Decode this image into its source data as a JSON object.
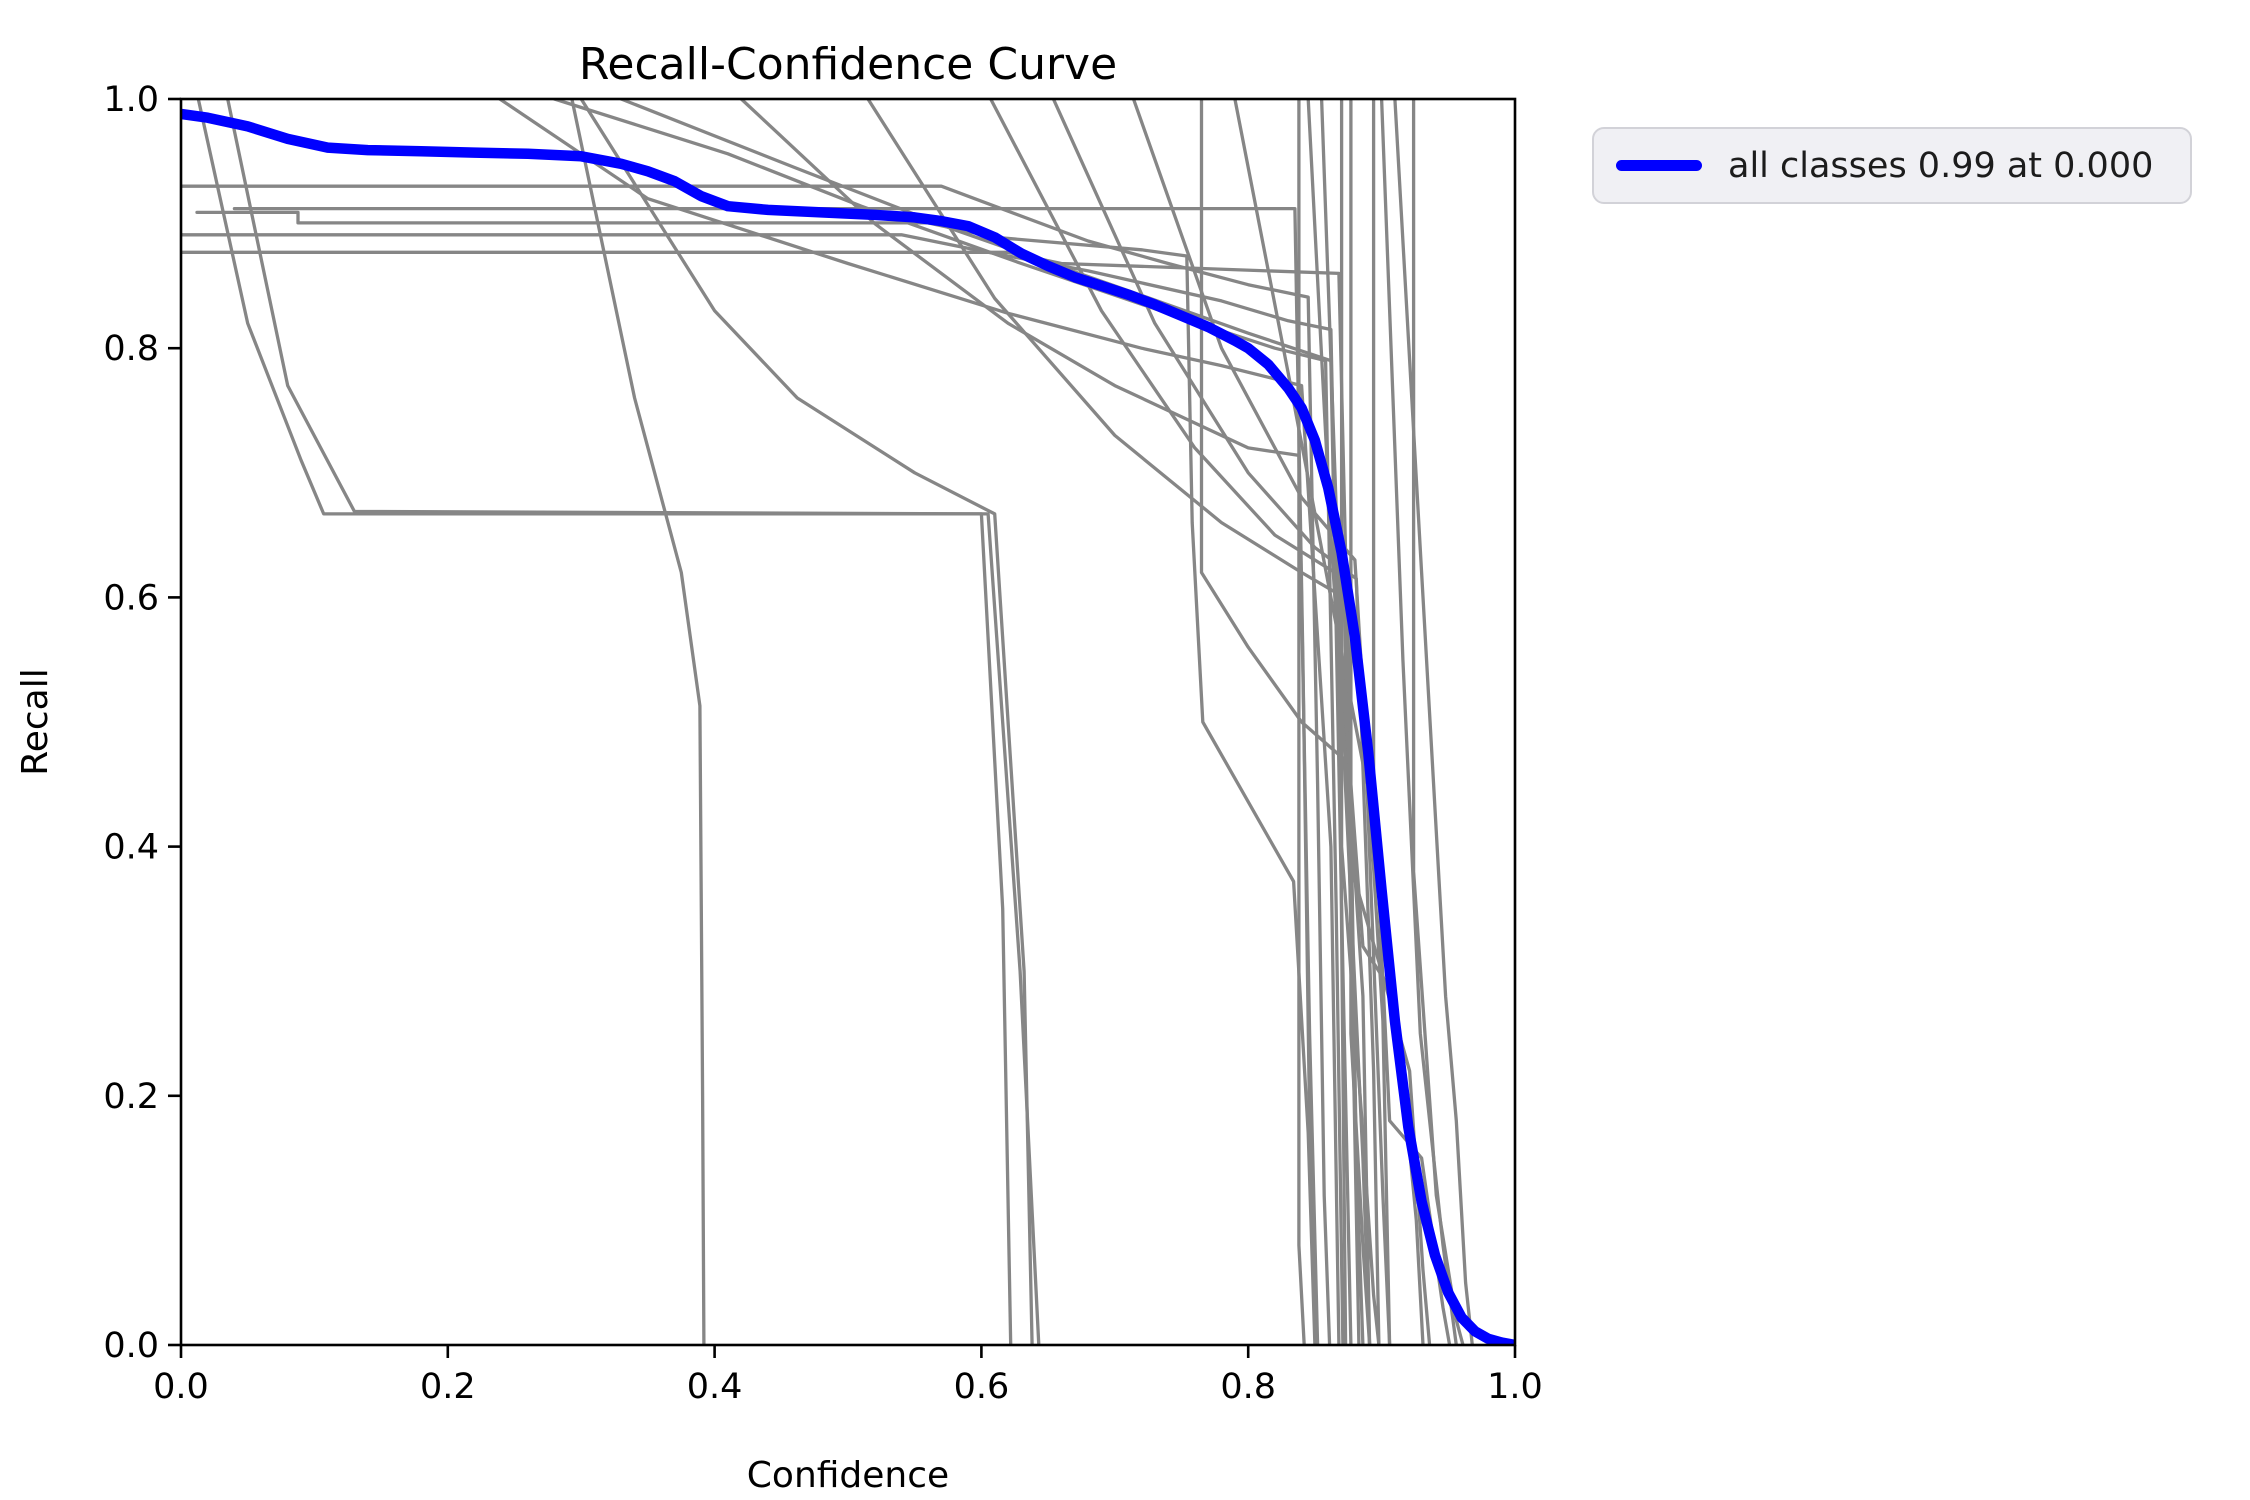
{
  "figure": {
    "title": "Recall-Confidence Curve",
    "xlabel": "Confidence",
    "ylabel": "Recall"
  },
  "legend": {
    "entries": [
      {
        "label": "all classes 0.99 at 0.000",
        "color": "#0000ff"
      }
    ]
  },
  "colors": {
    "all_classes_line": "#0000ff",
    "class_lines": "#868686",
    "axes": "#000000",
    "legend_background": "#f0f0f4",
    "legend_border": "#d2d2d8",
    "background": "#ffffff"
  },
  "chart_data": {
    "type": "line",
    "title": "Recall-Confidence Curve",
    "xlabel": "Confidence",
    "ylabel": "Recall",
    "xlim": [
      0.0,
      1.0
    ],
    "ylim": [
      0.0,
      1.0
    ],
    "grid": false,
    "legend_position": "outside-upper-right",
    "xtick_values": [
      0.0,
      0.2,
      0.4,
      0.6,
      0.8,
      1.0
    ],
    "xtick_labels": [
      "0.0",
      "0.2",
      "0.4",
      "0.6",
      "0.8",
      "1.0"
    ],
    "ytick_values": [
      0.0,
      0.2,
      0.4,
      0.6,
      0.8,
      1.0
    ],
    "ytick_labels": [
      "0.0",
      "0.2",
      "0.4",
      "0.6",
      "0.8",
      "1.0"
    ],
    "series": [
      {
        "name": "all classes 0.99 at 0.000",
        "color": "#0000ff",
        "linewidth": 10.5,
        "points": [
          [
            0.0,
            0.988
          ],
          [
            0.02,
            0.985
          ],
          [
            0.05,
            0.978
          ],
          [
            0.08,
            0.968
          ],
          [
            0.11,
            0.961
          ],
          [
            0.14,
            0.959
          ],
          [
            0.18,
            0.958
          ],
          [
            0.22,
            0.957
          ],
          [
            0.26,
            0.956
          ],
          [
            0.3,
            0.954
          ],
          [
            0.33,
            0.948
          ],
          [
            0.35,
            0.942
          ],
          [
            0.37,
            0.934
          ],
          [
            0.39,
            0.922
          ],
          [
            0.41,
            0.914
          ],
          [
            0.44,
            0.911
          ],
          [
            0.48,
            0.909
          ],
          [
            0.52,
            0.907
          ],
          [
            0.55,
            0.905
          ],
          [
            0.57,
            0.902
          ],
          [
            0.59,
            0.898
          ],
          [
            0.61,
            0.889
          ],
          [
            0.63,
            0.876
          ],
          [
            0.65,
            0.866
          ],
          [
            0.67,
            0.857
          ],
          [
            0.69,
            0.85
          ],
          [
            0.71,
            0.843
          ],
          [
            0.73,
            0.835
          ],
          [
            0.75,
            0.826
          ],
          [
            0.77,
            0.817
          ],
          [
            0.79,
            0.806
          ],
          [
            0.8,
            0.8
          ],
          [
            0.815,
            0.787
          ],
          [
            0.83,
            0.768
          ],
          [
            0.84,
            0.752
          ],
          [
            0.85,
            0.726
          ],
          [
            0.86,
            0.688
          ],
          [
            0.87,
            0.636
          ],
          [
            0.88,
            0.568
          ],
          [
            0.89,
            0.475
          ],
          [
            0.9,
            0.365
          ],
          [
            0.91,
            0.26
          ],
          [
            0.92,
            0.175
          ],
          [
            0.93,
            0.115
          ],
          [
            0.94,
            0.072
          ],
          [
            0.95,
            0.042
          ],
          [
            0.96,
            0.022
          ],
          [
            0.97,
            0.011
          ],
          [
            0.98,
            0.005
          ],
          [
            0.99,
            0.002
          ],
          [
            1.0,
            0.0
          ]
        ]
      }
    ],
    "unlabeled_class_curves": {
      "name": "per-class recall-confidence curves",
      "color": "#868686",
      "linewidth": 3.3,
      "lines": [
        [
          [
            0.0,
            0.93
          ],
          [
            0.57,
            0.93
          ],
          [
            0.6,
            0.918
          ],
          [
            0.68,
            0.886
          ],
          [
            0.74,
            0.868
          ],
          [
            0.8,
            0.851
          ],
          [
            0.845,
            0.841
          ],
          [
            0.852,
            0.45
          ],
          [
            0.857,
            0.12
          ],
          [
            0.861,
            0.0
          ]
        ],
        [
          [
            0.04,
            0.912
          ],
          [
            0.835,
            0.912
          ],
          [
            0.841,
            0.55
          ],
          [
            0.846,
            0.18
          ],
          [
            0.851,
            0.0
          ]
        ],
        [
          [
            0.012,
            0.909
          ],
          [
            0.0877,
            0.909
          ],
          [
            0.0877,
            0.9006
          ],
          [
            0.56,
            0.9006
          ],
          [
            0.61,
            0.889
          ],
          [
            0.72,
            0.879
          ],
          [
            0.754,
            0.874
          ],
          [
            0.758,
            0.66
          ],
          [
            0.766,
            0.5
          ],
          [
            0.834,
            0.372
          ],
          [
            0.845,
            0.17
          ],
          [
            0.85,
            0.0
          ]
        ],
        [
          [
            0.0,
            0.891
          ],
          [
            0.54,
            0.891
          ],
          [
            0.6,
            0.878
          ],
          [
            0.68,
            0.862
          ],
          [
            0.78,
            0.838
          ],
          [
            0.83,
            0.822
          ],
          [
            0.862,
            0.815
          ],
          [
            0.869,
            0.45
          ],
          [
            0.873,
            0.0
          ]
        ],
        [
          [
            0.0,
            0.877
          ],
          [
            0.62,
            0.877
          ],
          [
            0.66,
            0.868
          ],
          [
            0.868,
            0.86
          ],
          [
            0.876,
            0.5
          ],
          [
            0.881,
            0.15
          ],
          [
            0.886,
            0.0
          ]
        ],
        [
          [
            0.013,
            1.0
          ],
          [
            0.05,
            0.82
          ],
          [
            0.09,
            0.71
          ],
          [
            0.107,
            0.667
          ],
          [
            0.6,
            0.667
          ],
          [
            0.616,
            0.35
          ],
          [
            0.622,
            0.0
          ]
        ],
        [
          [
            0.035,
            1.0
          ],
          [
            0.08,
            0.77
          ],
          [
            0.13,
            0.669
          ],
          [
            0.605,
            0.667
          ],
          [
            0.629,
            0.3
          ],
          [
            0.643,
            0.0
          ]
        ],
        [
          [
            0.293,
            1.0
          ],
          [
            0.34,
            0.76
          ],
          [
            0.375,
            0.62
          ],
          [
            0.389,
            0.513
          ],
          [
            0.391,
            0.2
          ],
          [
            0.392,
            0.0
          ]
        ],
        [
          [
            0.3,
            1.0
          ],
          [
            0.4,
            0.83
          ],
          [
            0.462,
            0.76
          ],
          [
            0.55,
            0.7
          ],
          [
            0.61,
            0.667
          ],
          [
            0.632,
            0.3
          ],
          [
            0.638,
            0.0
          ]
        ],
        [
          [
            0.239,
            1.0
          ],
          [
            0.35,
            0.92
          ],
          [
            0.5,
            0.868
          ],
          [
            0.62,
            0.828
          ],
          [
            0.72,
            0.8
          ],
          [
            0.78,
            0.786
          ],
          [
            0.84,
            0.77
          ],
          [
            0.862,
            0.4
          ],
          [
            0.868,
            0.0
          ]
        ],
        [
          [
            0.28,
            1.0
          ],
          [
            0.41,
            0.956
          ],
          [
            0.51,
            0.914
          ],
          [
            0.63,
            0.868
          ],
          [
            0.74,
            0.828
          ],
          [
            0.82,
            0.8
          ],
          [
            0.858,
            0.79
          ],
          [
            0.866,
            0.35
          ],
          [
            0.871,
            0.0
          ]
        ],
        [
          [
            0.33,
            1.0
          ],
          [
            0.46,
            0.945
          ],
          [
            0.58,
            0.895
          ],
          [
            0.7,
            0.85
          ],
          [
            0.8,
            0.812
          ],
          [
            0.862,
            0.79
          ],
          [
            0.871,
            0.3
          ],
          [
            0.877,
            0.0
          ]
        ],
        [
          [
            0.42,
            1.0
          ],
          [
            0.52,
            0.9
          ],
          [
            0.62,
            0.82
          ],
          [
            0.7,
            0.77
          ],
          [
            0.77,
            0.735
          ],
          [
            0.8,
            0.72
          ],
          [
            0.838,
            0.714
          ],
          [
            0.846,
            0.25
          ],
          [
            0.852,
            0.0
          ]
        ],
        [
          [
            0.515,
            1.0
          ],
          [
            0.61,
            0.84
          ],
          [
            0.7,
            0.73
          ],
          [
            0.78,
            0.66
          ],
          [
            0.84,
            0.62
          ],
          [
            0.872,
            0.6
          ],
          [
            0.879,
            0.22
          ],
          [
            0.883,
            0.0
          ]
        ],
        [
          [
            0.607,
            1.0
          ],
          [
            0.69,
            0.83
          ],
          [
            0.76,
            0.72
          ],
          [
            0.82,
            0.65
          ],
          [
            0.865,
            0.62
          ],
          [
            0.886,
            0.28
          ],
          [
            0.891,
            0.0
          ]
        ],
        [
          [
            0.654,
            1.0
          ],
          [
            0.73,
            0.82
          ],
          [
            0.8,
            0.7
          ],
          [
            0.85,
            0.64
          ],
          [
            0.881,
            0.615
          ],
          [
            0.894,
            0.22
          ],
          [
            0.898,
            0.0
          ]
        ],
        [
          [
            0.714,
            1.0
          ],
          [
            0.78,
            0.8
          ],
          [
            0.84,
            0.68
          ],
          [
            0.88,
            0.63
          ],
          [
            0.901,
            0.26
          ],
          [
            0.906,
            0.0
          ]
        ],
        [
          [
            0.765,
            1.0
          ],
          [
            0.765,
            0.62
          ],
          [
            0.8,
            0.56
          ],
          [
            0.84,
            0.5
          ],
          [
            0.872,
            0.47
          ],
          [
            0.886,
            0.15
          ],
          [
            0.891,
            0.0
          ]
        ],
        [
          [
            0.79,
            1.0
          ],
          [
            0.83,
            0.78
          ],
          [
            0.862,
            0.6
          ],
          [
            0.889,
            0.45
          ],
          [
            0.901,
            0.12
          ],
          [
            0.906,
            0.0
          ]
        ],
        [
          [
            0.838,
            1.0
          ],
          [
            0.838,
            0.08
          ],
          [
            0.842,
            0.0
          ]
        ],
        [
          [
            0.845,
            1.0
          ],
          [
            0.862,
            0.65
          ],
          [
            0.878,
            0.38
          ],
          [
            0.9,
            0.3
          ],
          [
            0.921,
            0.22
          ],
          [
            0.931,
            0.06
          ],
          [
            0.936,
            0.0
          ]
        ],
        [
          [
            0.855,
            1.0
          ],
          [
            0.87,
            0.55
          ],
          [
            0.886,
            0.32
          ],
          [
            0.91,
            0.28
          ],
          [
            0.926,
            0.1
          ],
          [
            0.931,
            0.0
          ]
        ],
        [
          [
            0.87,
            1.0
          ],
          [
            0.87,
            0.4
          ],
          [
            0.886,
            0.17
          ],
          [
            0.894,
            0.04
          ],
          [
            0.898,
            0.0
          ]
        ],
        [
          [
            0.877,
            1.0
          ],
          [
            0.877,
            0.25
          ],
          [
            0.886,
            0.08
          ],
          [
            0.891,
            0.0
          ]
        ],
        [
          [
            0.894,
            1.0
          ],
          [
            0.894,
            0.45
          ],
          [
            0.906,
            0.18
          ],
          [
            0.93,
            0.15
          ],
          [
            0.946,
            0.03
          ],
          [
            0.951,
            0.0
          ]
        ],
        [
          [
            0.9,
            1.0
          ],
          [
            0.916,
            0.55
          ],
          [
            0.929,
            0.25
          ],
          [
            0.946,
            0.08
          ],
          [
            0.956,
            0.0
          ]
        ],
        [
          [
            0.924,
            1.0
          ],
          [
            0.924,
            0.38
          ],
          [
            0.941,
            0.12
          ],
          [
            0.956,
            0.02
          ],
          [
            0.961,
            0.0
          ]
        ],
        [
          [
            0.91,
            1.0
          ],
          [
            0.93,
            0.62
          ],
          [
            0.948,
            0.28
          ],
          [
            0.956,
            0.18
          ],
          [
            0.963,
            0.05
          ],
          [
            0.968,
            0.0
          ]
        ]
      ]
    }
  }
}
